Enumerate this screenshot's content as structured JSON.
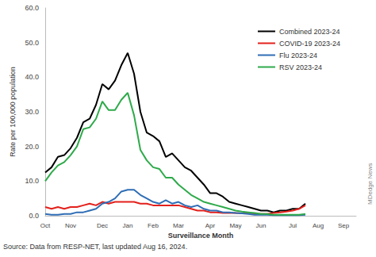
{
  "chart_data": {
    "type": "line",
    "x_label": "Surveillance Month",
    "y_label": "Rate per 100,000 population",
    "source": "Source: Data from RESP-NET, last updated Aug 16, 2024.",
    "annotations": [
      "MDedge News"
    ],
    "categories": [
      "Oct",
      null,
      null,
      null,
      "Nov",
      null,
      null,
      null,
      null,
      "Dec",
      null,
      null,
      null,
      "Jan",
      null,
      null,
      null,
      "Feb",
      null,
      null,
      null,
      "Mar",
      null,
      null,
      null,
      null,
      "Apr",
      null,
      null,
      null,
      "May",
      null,
      null,
      null,
      "Jun",
      null,
      null,
      null,
      null,
      "Jul",
      null,
      null,
      null,
      "Aug",
      null,
      null,
      null,
      "Sep",
      null,
      null
    ],
    "series": [
      {
        "name": "Combined 2023-24",
        "color": "#000000",
        "values": [
          12.5,
          14,
          17,
          17.5,
          19.5,
          22.5,
          27,
          28,
          32,
          38,
          36.5,
          39,
          43.5,
          47,
          41,
          30,
          24,
          23,
          21.5,
          17,
          18,
          16,
          14,
          13,
          11,
          9,
          6.5,
          6.5,
          5.5,
          4,
          3.5,
          3,
          2.5,
          2,
          1.5,
          1.5,
          1,
          1.5,
          1.5,
          2,
          2,
          3.5,
          null,
          null,
          null,
          null,
          null,
          null,
          null,
          null
        ]
      },
      {
        "name": "COVID-19 2023-24",
        "color": "#e3201b",
        "values": [
          2.5,
          2,
          2.5,
          2,
          2.5,
          2.5,
          3,
          3.5,
          3,
          4,
          3.5,
          4,
          4,
          4,
          4,
          3.5,
          3.5,
          3,
          3,
          3,
          3,
          3,
          2.5,
          2,
          1.5,
          1.5,
          1,
          1,
          0.8,
          0.8,
          0.8,
          0.7,
          0.7,
          0.5,
          0.5,
          0.5,
          0.8,
          1,
          1.2,
          1.5,
          2,
          3,
          null,
          null,
          null,
          null,
          null,
          null,
          null,
          null
        ]
      },
      {
        "name": "Flu 2023-24",
        "color": "#2f6db5",
        "values": [
          0.5,
          0.3,
          0.3,
          0.5,
          0.5,
          1,
          1,
          1.5,
          2,
          3.5,
          4,
          5,
          7,
          7.5,
          7.5,
          6,
          5,
          4,
          3.5,
          4.5,
          3.5,
          4,
          3,
          2.5,
          3,
          2,
          1.5,
          1.5,
          1,
          1,
          0.8,
          0.7,
          0.5,
          0.3,
          0.3,
          0.3,
          0.2,
          0.2,
          0.2,
          0.2,
          0.2,
          0.3,
          null,
          null,
          null,
          null,
          null,
          null,
          null,
          null
        ]
      },
      {
        "name": "RSV 2023-24",
        "color": "#2eaa4a",
        "values": [
          10,
          12.5,
          14.5,
          15.5,
          17.5,
          20,
          25,
          25.5,
          28,
          33,
          30.5,
          30.5,
          33.5,
          35.5,
          29,
          19,
          16,
          14,
          13.5,
          11,
          11,
          9,
          7.5,
          6,
          5,
          4,
          3.5,
          3,
          2.5,
          2,
          1.5,
          1.2,
          1,
          0.8,
          0.5,
          0.5,
          0.3,
          0.3,
          0.3,
          0.3,
          0.3,
          0.5,
          null,
          null,
          null,
          null,
          null,
          null,
          null,
          null
        ]
      }
    ],
    "ylim": [
      0,
      60
    ],
    "yticks": [
      {
        "value": 0,
        "label": "0.0"
      },
      {
        "value": 10,
        "label": "10.0"
      },
      {
        "value": 20,
        "label": "20.0"
      },
      {
        "value": 30,
        "label": "30.0"
      },
      {
        "value": 40,
        "label": "40.0"
      },
      {
        "value": 50,
        "label": "50.0"
      },
      {
        "value": 60,
        "label": "60.0"
      }
    ],
    "grid": false,
    "legend": "upper right"
  }
}
